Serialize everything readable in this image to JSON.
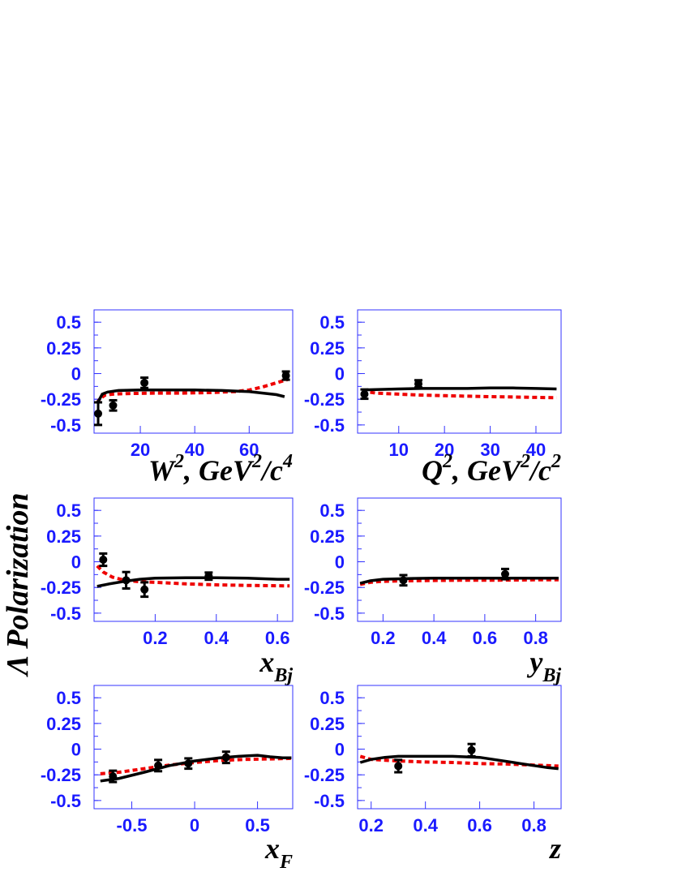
{
  "chart_data": {
    "type": "scatter",
    "y_axis_label": "Λ Polarization",
    "colors": {
      "tick_labels": "#1a1aff",
      "frame": "#3333ff",
      "solid_curve": "#000000",
      "dashed_curve": "#ee0000",
      "points": "#000000"
    },
    "y_ticks": [
      "0.5",
      "0.25",
      "0",
      "-0.25",
      "-0.5"
    ],
    "ylim": [
      -0.58,
      0.62
    ],
    "panels": [
      {
        "id": "w2",
        "xlabel": {
          "main": "W",
          "sup1": "2",
          "mid": ", GeV",
          "sup2": "2",
          "tail": "/c",
          "sup3": "4"
        },
        "xlim": [
          3,
          76
        ],
        "x_ticks": [
          {
            "v": 20,
            "t": "20"
          },
          {
            "v": 40,
            "t": "40"
          },
          {
            "v": 60,
            "t": "60"
          }
        ],
        "points": [
          {
            "x": 4.5,
            "y": -0.39,
            "err": 0.11
          },
          {
            "x": 10,
            "y": -0.31,
            "err": 0.05
          },
          {
            "x": 21.5,
            "y": -0.09,
            "err": 0.05
          },
          {
            "x": 73.5,
            "y": -0.02,
            "err": 0.04
          }
        ],
        "solid": [
          [
            4,
            -0.29
          ],
          [
            5,
            -0.25
          ],
          [
            6,
            -0.2
          ],
          [
            8,
            -0.18
          ],
          [
            12,
            -0.165
          ],
          [
            20,
            -0.16
          ],
          [
            30,
            -0.16
          ],
          [
            40,
            -0.16
          ],
          [
            50,
            -0.165
          ],
          [
            55,
            -0.17
          ],
          [
            60,
            -0.175
          ],
          [
            65,
            -0.19
          ],
          [
            70,
            -0.205
          ],
          [
            73,
            -0.225
          ]
        ],
        "dashed": [
          [
            4,
            -0.29
          ],
          [
            5,
            -0.25
          ],
          [
            7,
            -0.21
          ],
          [
            10,
            -0.2
          ],
          [
            15,
            -0.195
          ],
          [
            25,
            -0.19
          ],
          [
            35,
            -0.19
          ],
          [
            45,
            -0.185
          ],
          [
            55,
            -0.175
          ],
          [
            60,
            -0.16
          ],
          [
            65,
            -0.13
          ],
          [
            70,
            -0.09
          ],
          [
            74,
            -0.06
          ]
        ]
      },
      {
        "id": "q2",
        "xlabel": {
          "main": "Q",
          "sup1": "2",
          "mid": ", GeV",
          "sup2": "2",
          "tail": "/c",
          "sup3": "2"
        },
        "xlim": [
          1,
          45.5
        ],
        "x_ticks": [
          {
            "v": 10,
            "t": "10"
          },
          {
            "v": 20,
            "t": "20"
          },
          {
            "v": 30,
            "t": "30"
          },
          {
            "v": 40,
            "t": "40"
          }
        ],
        "points": [
          {
            "x": 2.5,
            "y": -0.2,
            "err": 0.045
          },
          {
            "x": 14.3,
            "y": -0.1,
            "err": 0.035
          }
        ],
        "solid": [
          [
            2,
            -0.16
          ],
          [
            5,
            -0.155
          ],
          [
            10,
            -0.15
          ],
          [
            15,
            -0.145
          ],
          [
            20,
            -0.145
          ],
          [
            25,
            -0.145
          ],
          [
            30,
            -0.14
          ],
          [
            35,
            -0.14
          ],
          [
            40,
            -0.145
          ],
          [
            44.5,
            -0.15
          ]
        ],
        "dashed": [
          [
            2,
            -0.17
          ],
          [
            5,
            -0.19
          ],
          [
            10,
            -0.2
          ],
          [
            15,
            -0.21
          ],
          [
            20,
            -0.215
          ],
          [
            25,
            -0.22
          ],
          [
            30,
            -0.225
          ],
          [
            35,
            -0.228
          ],
          [
            40,
            -0.232
          ],
          [
            44.5,
            -0.235
          ]
        ]
      },
      {
        "id": "xbj",
        "xlabel": {
          "main": "x",
          "sub": "Bj"
        },
        "xlim": [
          0,
          0.65
        ],
        "x_ticks": [
          {
            "v": 0.2,
            "t": "0.2"
          },
          {
            "v": 0.4,
            "t": "0.4"
          },
          {
            "v": 0.6,
            "t": "0.6"
          }
        ],
        "points": [
          {
            "x": 0.03,
            "y": 0.02,
            "err": 0.06
          },
          {
            "x": 0.105,
            "y": -0.18,
            "err": 0.08
          },
          {
            "x": 0.165,
            "y": -0.27,
            "err": 0.07
          },
          {
            "x": 0.375,
            "y": -0.14,
            "err": 0.035
          }
        ],
        "solid": [
          [
            0.01,
            -0.24
          ],
          [
            0.05,
            -0.215
          ],
          [
            0.1,
            -0.19
          ],
          [
            0.15,
            -0.17
          ],
          [
            0.2,
            -0.16
          ],
          [
            0.3,
            -0.155
          ],
          [
            0.4,
            -0.155
          ],
          [
            0.5,
            -0.16
          ],
          [
            0.6,
            -0.17
          ],
          [
            0.64,
            -0.17
          ]
        ],
        "dashed": [
          [
            0.01,
            -0.04
          ],
          [
            0.03,
            -0.1
          ],
          [
            0.06,
            -0.15
          ],
          [
            0.1,
            -0.18
          ],
          [
            0.15,
            -0.195
          ],
          [
            0.2,
            -0.2
          ],
          [
            0.3,
            -0.215
          ],
          [
            0.4,
            -0.225
          ],
          [
            0.5,
            -0.23
          ],
          [
            0.64,
            -0.235
          ]
        ]
      },
      {
        "id": "ybj",
        "xlabel": {
          "main": "y",
          "sub": "Bj"
        },
        "xlim": [
          0.1,
          0.9
        ],
        "x_ticks": [
          {
            "v": 0.2,
            "t": "0.2"
          },
          {
            "v": 0.4,
            "t": "0.4"
          },
          {
            "v": 0.6,
            "t": "0.6"
          },
          {
            "v": 0.8,
            "t": "0.8"
          }
        ],
        "points": [
          {
            "x": 0.28,
            "y": -0.18,
            "err": 0.05
          },
          {
            "x": 0.68,
            "y": -0.12,
            "err": 0.05
          }
        ],
        "solid": [
          [
            0.11,
            -0.21
          ],
          [
            0.15,
            -0.185
          ],
          [
            0.2,
            -0.17
          ],
          [
            0.3,
            -0.163
          ],
          [
            0.4,
            -0.16
          ],
          [
            0.5,
            -0.16
          ],
          [
            0.6,
            -0.16
          ],
          [
            0.7,
            -0.16
          ],
          [
            0.8,
            -0.16
          ],
          [
            0.89,
            -0.16
          ]
        ],
        "dashed": [
          [
            0.11,
            -0.22
          ],
          [
            0.15,
            -0.2
          ],
          [
            0.2,
            -0.19
          ],
          [
            0.3,
            -0.185
          ],
          [
            0.4,
            -0.182
          ],
          [
            0.5,
            -0.18
          ],
          [
            0.6,
            -0.18
          ],
          [
            0.7,
            -0.178
          ],
          [
            0.8,
            -0.176
          ],
          [
            0.89,
            -0.175
          ]
        ]
      },
      {
        "id": "xf",
        "xlabel": {
          "main": "x",
          "sub": "F"
        },
        "xlim": [
          -0.8,
          0.78
        ],
        "x_ticks": [
          {
            "v": -0.5,
            "t": "-0.5"
          },
          {
            "v": 0,
            "t": "0"
          },
          {
            "v": 0.5,
            "t": "0.5"
          }
        ],
        "points": [
          {
            "x": -0.65,
            "y": -0.265,
            "err": 0.055
          },
          {
            "x": -0.29,
            "y": -0.16,
            "err": 0.055
          },
          {
            "x": -0.05,
            "y": -0.14,
            "err": 0.05
          },
          {
            "x": 0.25,
            "y": -0.08,
            "err": 0.055
          }
        ],
        "solid": [
          [
            -0.75,
            -0.31
          ],
          [
            -0.6,
            -0.285
          ],
          [
            -0.4,
            -0.225
          ],
          [
            -0.2,
            -0.16
          ],
          [
            0,
            -0.115
          ],
          [
            0.2,
            -0.085
          ],
          [
            0.35,
            -0.07
          ],
          [
            0.5,
            -0.06
          ],
          [
            0.6,
            -0.075
          ],
          [
            0.7,
            -0.085
          ],
          [
            0.77,
            -0.085
          ]
        ],
        "dashed": [
          [
            -0.75,
            -0.24
          ],
          [
            -0.6,
            -0.225
          ],
          [
            -0.4,
            -0.19
          ],
          [
            -0.2,
            -0.155
          ],
          [
            0,
            -0.13
          ],
          [
            0.2,
            -0.11
          ],
          [
            0.4,
            -0.1
          ],
          [
            0.6,
            -0.095
          ],
          [
            0.77,
            -0.09
          ]
        ]
      },
      {
        "id": "z",
        "xlabel": {
          "main": "z"
        },
        "xlim": [
          0.15,
          0.9
        ],
        "x_ticks": [
          {
            "v": 0.2,
            "t": "0.2"
          },
          {
            "v": 0.4,
            "t": "0.4"
          },
          {
            "v": 0.6,
            "t": "0.6"
          },
          {
            "v": 0.8,
            "t": "0.8"
          }
        ],
        "points": [
          {
            "x": 0.3,
            "y": -0.165,
            "err": 0.06
          },
          {
            "x": 0.57,
            "y": -0.01,
            "err": 0.06
          }
        ],
        "solid": [
          [
            0.16,
            -0.13
          ],
          [
            0.2,
            -0.1
          ],
          [
            0.25,
            -0.08
          ],
          [
            0.3,
            -0.07
          ],
          [
            0.4,
            -0.07
          ],
          [
            0.5,
            -0.07
          ],
          [
            0.6,
            -0.08
          ],
          [
            0.65,
            -0.1
          ],
          [
            0.7,
            -0.12
          ],
          [
            0.75,
            -0.14
          ],
          [
            0.8,
            -0.16
          ],
          [
            0.85,
            -0.18
          ],
          [
            0.89,
            -0.19
          ]
        ],
        "dashed": [
          [
            0.16,
            -0.07
          ],
          [
            0.2,
            -0.1
          ],
          [
            0.3,
            -0.115
          ],
          [
            0.4,
            -0.125
          ],
          [
            0.5,
            -0.13
          ],
          [
            0.6,
            -0.14
          ],
          [
            0.7,
            -0.145
          ],
          [
            0.8,
            -0.155
          ],
          [
            0.89,
            -0.165
          ]
        ]
      }
    ]
  }
}
